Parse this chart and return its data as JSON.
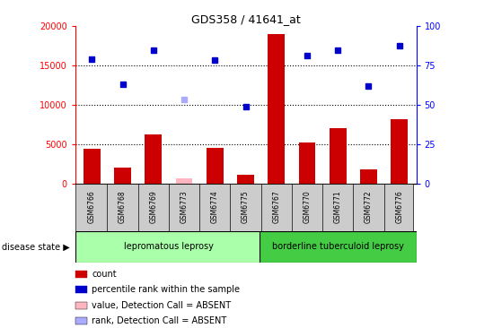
{
  "title": "GDS358 / 41641_at",
  "samples": [
    "GSM6766",
    "GSM6768",
    "GSM6769",
    "GSM6773",
    "GSM6774",
    "GSM6775",
    "GSM6767",
    "GSM6770",
    "GSM6771",
    "GSM6772",
    "GSM6776"
  ],
  "counts": [
    4400,
    2000,
    6200,
    null,
    4600,
    1100,
    19000,
    5200,
    7000,
    1800,
    8200
  ],
  "absent_counts": [
    null,
    null,
    null,
    700,
    null,
    null,
    null,
    null,
    null,
    null,
    null
  ],
  "percentile_ranks": [
    79,
    63,
    85,
    null,
    78.5,
    49,
    null,
    81.5,
    85,
    62,
    87.5
  ],
  "absent_ranks": [
    null,
    null,
    null,
    53.5,
    null,
    null,
    null,
    null,
    null,
    null,
    null
  ],
  "groups": {
    "lepromatous leprosy": [
      0,
      1,
      2,
      3,
      4,
      5
    ],
    "borderline tuberculoid leprosy": [
      6,
      7,
      8,
      9,
      10
    ]
  },
  "ylim_left": [
    0,
    20000
  ],
  "ylim_right": [
    0,
    100
  ],
  "yticks_left": [
    0,
    5000,
    10000,
    15000,
    20000
  ],
  "yticks_right": [
    0,
    25,
    50,
    75,
    100
  ],
  "bar_color": "#CC0000",
  "absent_bar_color": "#FFB6C1",
  "dot_color": "#0000CC",
  "absent_dot_color": "#AAAAFF",
  "group1_color": "#AAFFAA",
  "group2_color": "#44CC44",
  "label_bg_color": "#CCCCCC",
  "legend_items": [
    {
      "label": "count",
      "color": "#CC0000"
    },
    {
      "label": "percentile rank within the sample",
      "color": "#0000CC"
    },
    {
      "label": "value, Detection Call = ABSENT",
      "color": "#FFB6C1"
    },
    {
      "label": "rank, Detection Call = ABSENT",
      "color": "#AAAAFF"
    }
  ]
}
